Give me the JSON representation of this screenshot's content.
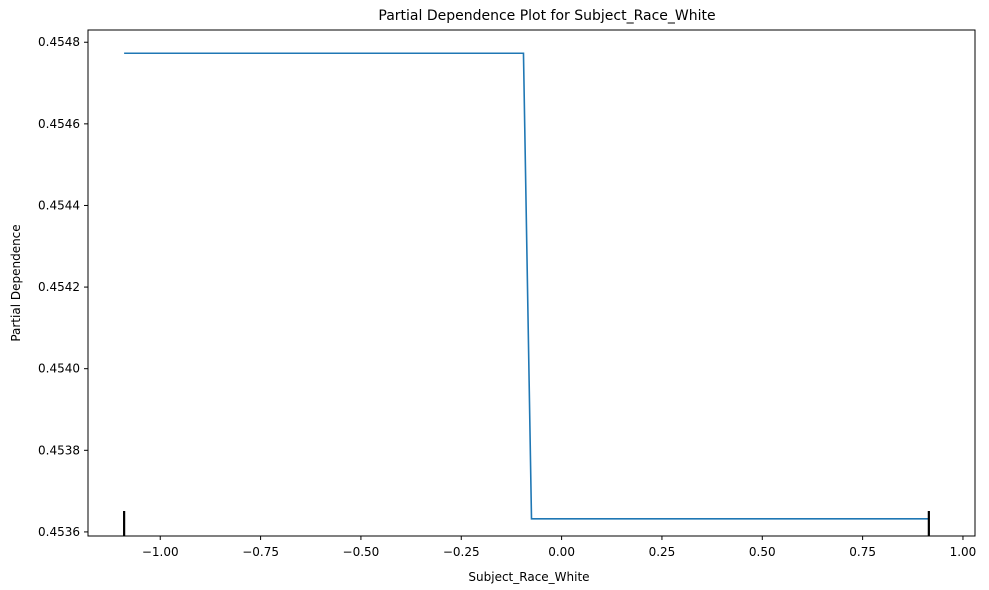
{
  "chart_data": {
    "type": "line",
    "title": "Partial Dependence Plot for Subject_Race_White",
    "xlabel": "Subject_Race_White",
    "ylabel": "Partial Dependence",
    "xlim": [
      -1.18,
      1.03
    ],
    "ylim": [
      0.45359,
      0.45483
    ],
    "x_ticks": [
      -1.0,
      -0.75,
      -0.5,
      -0.25,
      0.0,
      0.25,
      0.5,
      0.75,
      1.0
    ],
    "x_tick_labels": [
      "−1.00",
      "−0.75",
      "−0.50",
      "−0.25",
      "0.00",
      "0.25",
      "0.50",
      "0.75",
      "1.00"
    ],
    "y_ticks": [
      0.4536,
      0.4538,
      0.454,
      0.4542,
      0.4544,
      0.4546,
      0.4548
    ],
    "y_tick_labels": [
      "0.4536",
      "0.4538",
      "0.4540",
      "0.4542",
      "0.4544",
      "0.4546",
      "0.4548"
    ],
    "grid": false,
    "series": [
      {
        "color": "#1f77b4",
        "x": [
          -1.09,
          -0.095,
          -0.075,
          0.915
        ],
        "y": [
          0.454773,
          0.454773,
          0.453632,
          0.453632
        ]
      }
    ],
    "rug": {
      "color": "#000000",
      "x": [
        -1.09,
        0.915
      ]
    }
  }
}
